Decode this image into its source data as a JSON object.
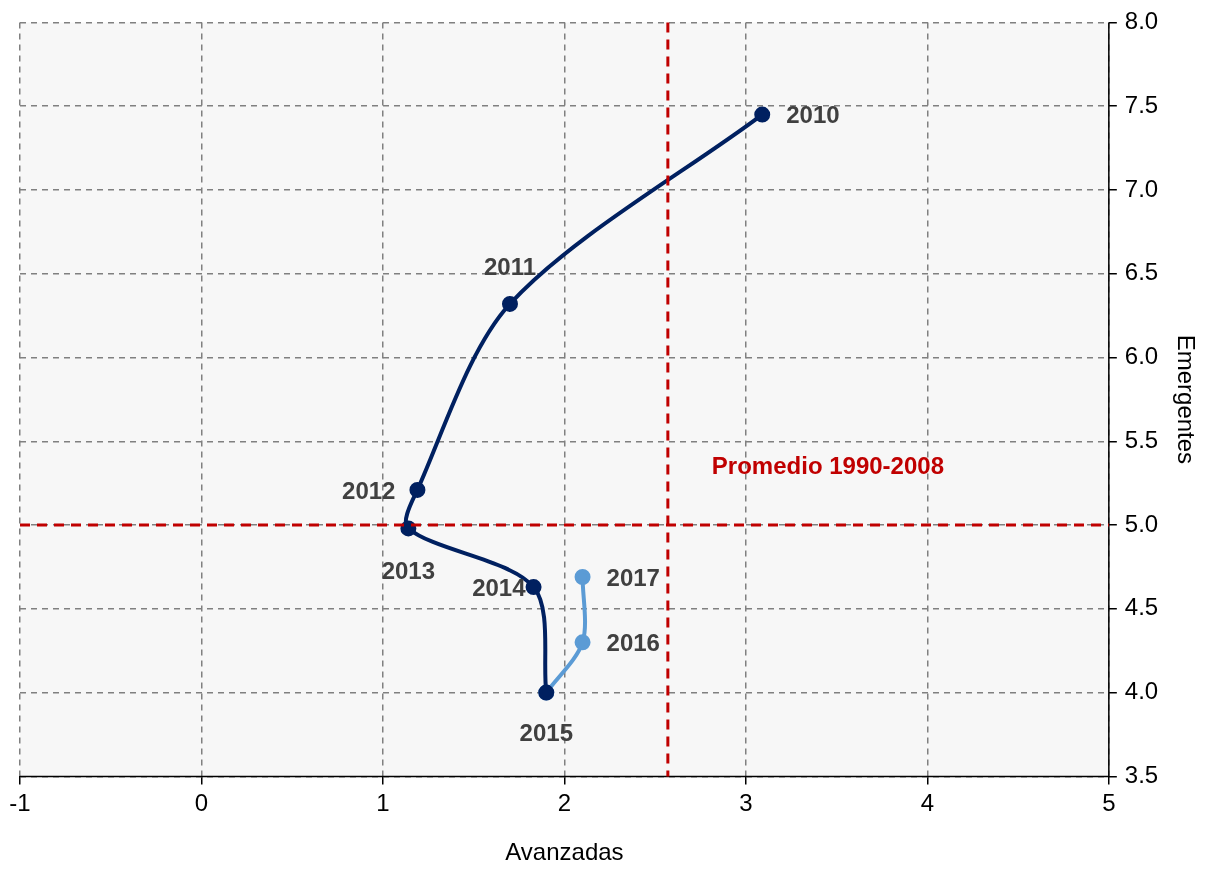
{
  "chart_data": {
    "type": "line",
    "xlabel": "Avanzadas",
    "ylabel": "Emergentes",
    "marker": "circle",
    "line_style": "solid",
    "grid": true,
    "legend": false,
    "xlim": [
      -1,
      5
    ],
    "xticks": [
      -1,
      0,
      1,
      2,
      3,
      4,
      5
    ],
    "ylim": [
      3.5,
      8
    ],
    "yticks": [
      3.5,
      {
        "value": 4,
        "label": "4.0"
      },
      4.5,
      {
        "value": 5,
        "label": "5.0"
      },
      5.5,
      {
        "value": 6,
        "label": "6.0"
      },
      6.5,
      {
        "value": 7,
        "label": "7.0"
      },
      7.5,
      {
        "value": 8,
        "label": "8.0"
      }
    ],
    "series": [
      {
        "color": "#002060",
        "x": [
          3.09,
          1.7,
          1.19,
          1.14,
          1.83,
          1.9
        ],
        "values": [
          7.45,
          6.32,
          5.21,
          4.98,
          4.63,
          4.0
        ]
      },
      {
        "color": "#5b9bd5",
        "x": [
          1.9,
          2.1,
          2.1
        ],
        "values": [
          4.0,
          4.3,
          4.69
        ]
      }
    ],
    "ref_lines": [
      {
        "axis": "x",
        "value": 2.57,
        "label": "Promedio 1990-2008",
        "color": "#c00000",
        "line_style": "dashed"
      },
      {
        "axis": "y",
        "value": 5.0,
        "color": "#c00000",
        "line_style": "dashed"
      }
    ],
    "annotations": [
      {
        "text": "2010",
        "x": 3.09,
        "y": 7.45
      },
      {
        "text": "2011",
        "x": 1.7,
        "y": 6.32
      },
      {
        "text": "2012",
        "x": 1.19,
        "y": 5.21
      },
      {
        "text": "2013",
        "x": 1.14,
        "y": 4.98
      },
      {
        "text": "2014",
        "x": 1.83,
        "y": 4.63
      },
      {
        "text": "2015",
        "x": 1.9,
        "y": 4.0
      },
      {
        "text": "2016",
        "x": 2.1,
        "y": 4.3
      },
      {
        "text": "2017",
        "x": 2.1,
        "y": 4.69
      }
    ]
  }
}
